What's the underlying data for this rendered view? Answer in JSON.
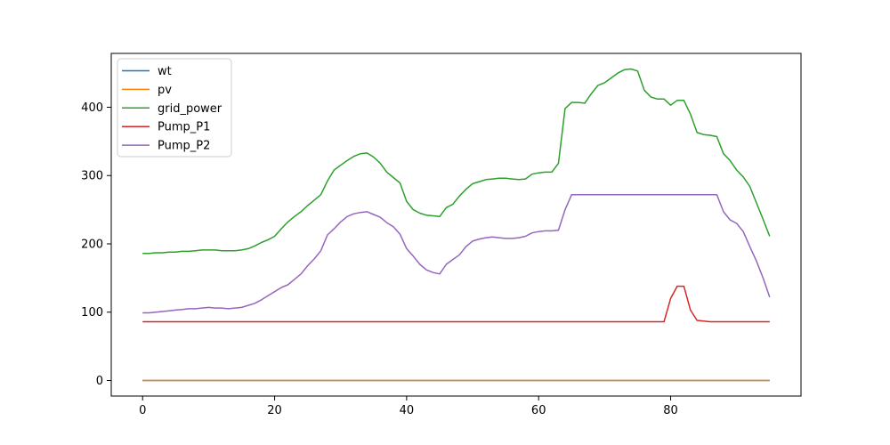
{
  "figure": {
    "background": "#ffffff",
    "axes_edge_color": "#000000"
  },
  "chart_data": {
    "type": "line",
    "title": "",
    "xlabel": "",
    "ylabel": "",
    "grid": false,
    "legend_position": "upper-left",
    "x_ticks": [
      0,
      20,
      40,
      60,
      80
    ],
    "y_ticks": [
      0,
      100,
      200,
      300,
      400
    ],
    "xlim": [
      -4.75,
      99.75
    ],
    "ylim": [
      -22.8,
      478.8
    ],
    "x": [
      0,
      1,
      2,
      3,
      4,
      5,
      6,
      7,
      8,
      9,
      10,
      11,
      12,
      13,
      14,
      15,
      16,
      17,
      18,
      19,
      20,
      21,
      22,
      23,
      24,
      25,
      26,
      27,
      28,
      29,
      30,
      31,
      32,
      33,
      34,
      35,
      36,
      37,
      38,
      39,
      40,
      41,
      42,
      43,
      44,
      45,
      46,
      47,
      48,
      49,
      50,
      51,
      52,
      53,
      54,
      55,
      56,
      57,
      58,
      59,
      60,
      61,
      62,
      63,
      64,
      65,
      66,
      67,
      68,
      69,
      70,
      71,
      72,
      73,
      74,
      75,
      76,
      77,
      78,
      79,
      80,
      81,
      82,
      83,
      84,
      85,
      86,
      87,
      88,
      89,
      90,
      91,
      92,
      93,
      94,
      95
    ],
    "series": [
      {
        "name": "wt",
        "color": "#1f77b4",
        "values": [
          0,
          0,
          0,
          0,
          0,
          0,
          0,
          0,
          0,
          0,
          0,
          0,
          0,
          0,
          0,
          0,
          0,
          0,
          0,
          0,
          0,
          0,
          0,
          0,
          0,
          0,
          0,
          0,
          0,
          0,
          0,
          0,
          0,
          0,
          0,
          0,
          0,
          0,
          0,
          0,
          0,
          0,
          0,
          0,
          0,
          0,
          0,
          0,
          0,
          0,
          0,
          0,
          0,
          0,
          0,
          0,
          0,
          0,
          0,
          0,
          0,
          0,
          0,
          0,
          0,
          0,
          0,
          0,
          0,
          0,
          0,
          0,
          0,
          0,
          0,
          0,
          0,
          0,
          0,
          0,
          0,
          0,
          0,
          0,
          0,
          0,
          0,
          0,
          0,
          0,
          0,
          0,
          0,
          0,
          0,
          0
        ]
      },
      {
        "name": "pv",
        "color": "#ff7f0e",
        "values": [
          0,
          0,
          0,
          0,
          0,
          0,
          0,
          0,
          0,
          0,
          0,
          0,
          0,
          0,
          0,
          0,
          0,
          0,
          0,
          0,
          0,
          0,
          0,
          0,
          0,
          0,
          0,
          0,
          0,
          0,
          0,
          0,
          0,
          0,
          0,
          0,
          0,
          0,
          0,
          0,
          0,
          0,
          0,
          0,
          0,
          0,
          0,
          0,
          0,
          0,
          0,
          0,
          0,
          0,
          0,
          0,
          0,
          0,
          0,
          0,
          0,
          0,
          0,
          0,
          0,
          0,
          0,
          0,
          0,
          0,
          0,
          0,
          0,
          0,
          0,
          0,
          0,
          0,
          0,
          0,
          0,
          0,
          0,
          0,
          0,
          0,
          0,
          0,
          0,
          0,
          0,
          0,
          0,
          0,
          0,
          0
        ]
      },
      {
        "name": "grid_power",
        "color": "#2ca02c",
        "values": [
          186,
          186,
          187,
          187,
          188,
          188,
          189,
          189,
          190,
          191,
          191,
          191,
          190,
          190,
          190,
          191,
          193,
          197,
          202,
          206,
          211,
          222,
          232,
          240,
          247,
          256,
          264,
          272,
          292,
          308,
          315,
          322,
          328,
          332,
          333,
          327,
          318,
          305,
          297,
          289,
          262,
          250,
          245,
          242,
          241,
          240,
          253,
          258,
          270,
          280,
          288,
          291,
          294,
          295,
          296,
          296,
          295,
          294,
          295,
          302,
          304,
          305,
          305,
          318,
          398,
          407,
          407,
          406,
          420,
          432,
          436,
          443,
          450,
          455,
          456,
          453,
          425,
          415,
          412,
          412,
          403,
          410,
          410,
          390,
          363,
          360,
          359,
          357,
          332,
          322,
          308,
          298,
          284,
          260,
          236,
          211
        ]
      },
      {
        "name": "Pump_P1",
        "color": "#d62728",
        "values": [
          86,
          86,
          86,
          86,
          86,
          86,
          86,
          86,
          86,
          86,
          86,
          86,
          86,
          86,
          86,
          86,
          86,
          86,
          86,
          86,
          86,
          86,
          86,
          86,
          86,
          86,
          86,
          86,
          86,
          86,
          86,
          86,
          86,
          86,
          86,
          86,
          86,
          86,
          86,
          86,
          86,
          86,
          86,
          86,
          86,
          86,
          86,
          86,
          86,
          86,
          86,
          86,
          86,
          86,
          86,
          86,
          86,
          86,
          86,
          86,
          86,
          86,
          86,
          86,
          86,
          86,
          86,
          86,
          86,
          86,
          86,
          86,
          86,
          86,
          86,
          86,
          86,
          86,
          86,
          86,
          120,
          138,
          138,
          103,
          88,
          87,
          86,
          86,
          86,
          86,
          86,
          86,
          86,
          86,
          86,
          86
        ]
      },
      {
        "name": "Pump_P2",
        "color": "#9467bd",
        "values": [
          99,
          99,
          100,
          101,
          102,
          103,
          104,
          105,
          105,
          106,
          107,
          106,
          106,
          105,
          106,
          107,
          110,
          113,
          118,
          124,
          130,
          136,
          140,
          148,
          156,
          168,
          178,
          190,
          213,
          222,
          232,
          240,
          244,
          246,
          247,
          243,
          239,
          231,
          225,
          214,
          193,
          182,
          170,
          162,
          158,
          156,
          170,
          177,
          184,
          196,
          204,
          207,
          209,
          210,
          209,
          208,
          208,
          209,
          211,
          216,
          218,
          219,
          219,
          220,
          250,
          272,
          272,
          272,
          272,
          272,
          272,
          272,
          272,
          272,
          272,
          272,
          272,
          272,
          272,
          272,
          272,
          272,
          272,
          272,
          272,
          272,
          272,
          272,
          247,
          235,
          230,
          218,
          196,
          175,
          150,
          122
        ]
      }
    ]
  }
}
